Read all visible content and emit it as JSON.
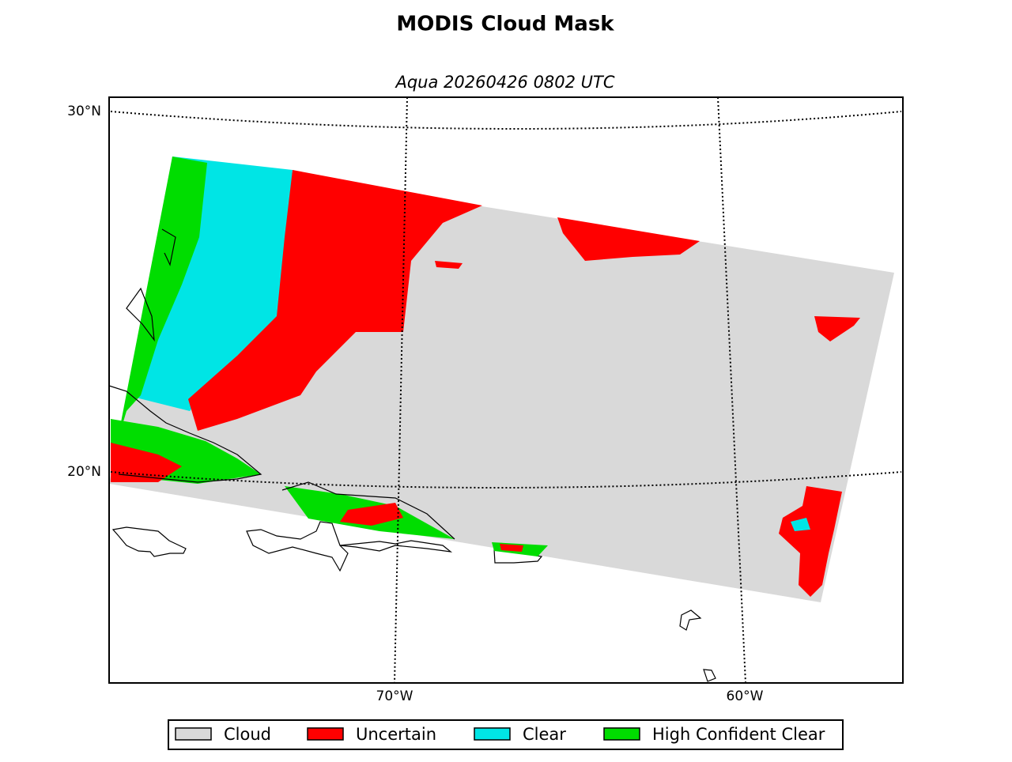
{
  "title": "MODIS Cloud Mask",
  "subtitle": "Aqua 20260426 0802 UTC",
  "latitude_labels": [
    "30°N",
    "20°N"
  ],
  "longitude_labels": [
    "70°W",
    "60°W"
  ],
  "legend": [
    {
      "label": "Cloud",
      "color": "#d9d9d9"
    },
    {
      "label": "Uncertain",
      "color": "#ff0000"
    },
    {
      "label": "Clear",
      "color": "#00e5e5"
    },
    {
      "label": "High Confident Clear",
      "color": "#00dd00"
    }
  ]
}
